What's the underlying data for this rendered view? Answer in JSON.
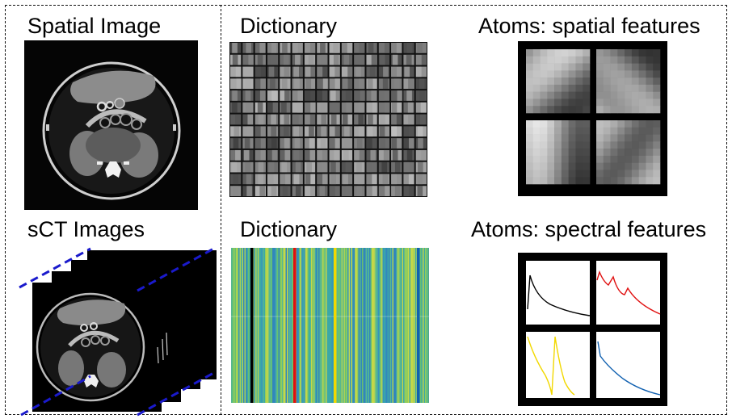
{
  "labels": {
    "spatial_image": "Spatial Image",
    "dictionary_top": "Dictionary",
    "atoms_spatial": "Atoms: spatial features",
    "sct_images": "sCT Images",
    "dictionary_bottom": "Dictionary",
    "atoms_spectral": "Atoms: spectral features"
  },
  "highlight_colors": {
    "black_atom": "#000000",
    "red_atom": "#e01010",
    "yellow_atom": "#f2d800",
    "blue_atom": "#1060b0",
    "stack_edge_dash": "#1a1acc"
  }
}
